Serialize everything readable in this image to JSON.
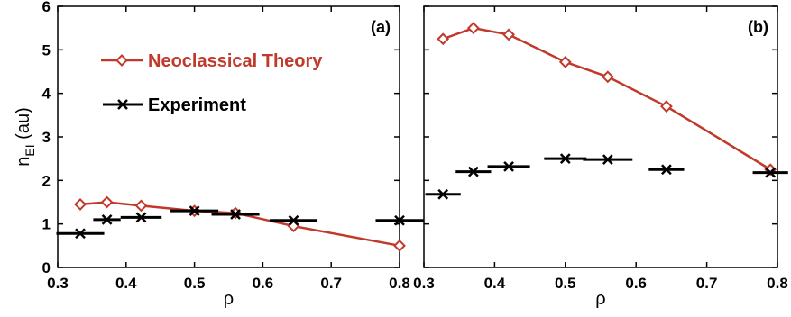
{
  "chart_data": [
    {
      "type": "line",
      "panel_label": "(a)",
      "xlabel": "ρ",
      "ylabel": "n",
      "ylabel_sub": "EI",
      "ylabel_unit": " (au)",
      "xlim": [
        0.3,
        0.8
      ],
      "ylim": [
        0,
        6
      ],
      "xticks": [
        "0.3",
        "0.4",
        "0.5",
        "0.6",
        "0.7",
        "0.8"
      ],
      "yticks": [
        "0",
        "1",
        "2",
        "3",
        "4",
        "5",
        "6"
      ],
      "grid": false,
      "legend": {
        "placement": "top-left"
      },
      "series": [
        {
          "name": "Neoclassical Theory",
          "color": "#c0392b",
          "marker": "diamond",
          "x": [
            0.333,
            0.372,
            0.422,
            0.5,
            0.56,
            0.645,
            0.8
          ],
          "y": [
            1.45,
            1.5,
            1.42,
            1.3,
            1.25,
            0.95,
            0.5
          ]
        },
        {
          "name": "Experiment",
          "color": "#000000",
          "marker": "x",
          "x": [
            0.333,
            0.372,
            0.422,
            0.5,
            0.56,
            0.645,
            0.8
          ],
          "y": [
            0.78,
            1.1,
            1.15,
            1.3,
            1.22,
            1.08,
            1.08
          ],
          "xerr": [
            0.035,
            0.02,
            0.03,
            0.035,
            0.035,
            0.035,
            0.035
          ]
        }
      ]
    },
    {
      "type": "line",
      "panel_label": "(b)",
      "xlabel": "ρ",
      "xlim": [
        0.3,
        0.8
      ],
      "ylim": [
        0,
        6
      ],
      "xticks": [
        "0.3",
        "0.4",
        "0.5",
        "0.6",
        "0.7",
        "0.8"
      ],
      "grid": false,
      "series": [
        {
          "name": "Neoclassical Theory",
          "color": "#c0392b",
          "marker": "diamond",
          "x": [
            0.327,
            0.37,
            0.42,
            0.5,
            0.56,
            0.643,
            0.79
          ],
          "y": [
            5.25,
            5.5,
            5.35,
            4.72,
            4.38,
            3.7,
            2.25
          ]
        },
        {
          "name": "Experiment",
          "color": "#000000",
          "marker": "x",
          "x": [
            0.327,
            0.37,
            0.42,
            0.5,
            0.56,
            0.643,
            0.79
          ],
          "y": [
            1.68,
            2.2,
            2.32,
            2.5,
            2.48,
            2.25,
            2.18
          ],
          "xerr": [
            0.025,
            0.025,
            0.03,
            0.03,
            0.035,
            0.025,
            0.025
          ]
        }
      ]
    }
  ]
}
